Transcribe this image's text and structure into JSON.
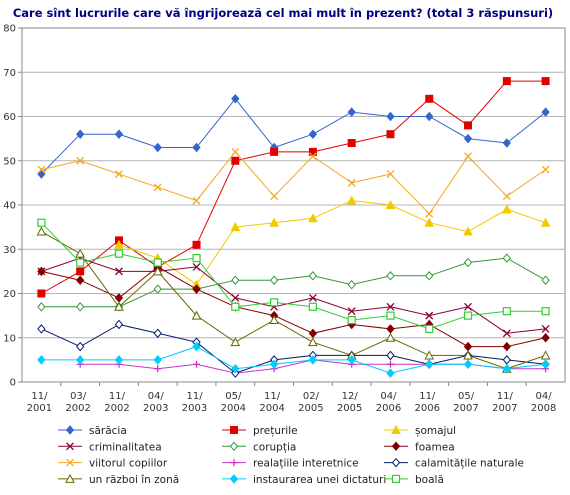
{
  "chart_data": {
    "type": "line",
    "title": "Care sînt lucrurile care vă îngrijorează cel mai mult în prezent? (total 3 răspunsuri)",
    "xlabel": "",
    "ylabel": "",
    "ylim": [
      0,
      80
    ],
    "yticks": [
      "0",
      "10",
      "20",
      "30",
      "40",
      "50",
      "60",
      "70",
      "80"
    ],
    "categories": [
      [
        "11/",
        "2001"
      ],
      [
        "03/",
        "2002"
      ],
      [
        "11/",
        "2002"
      ],
      [
        "04/",
        "2003"
      ],
      [
        "11/",
        "2003"
      ],
      [
        "05/",
        "2004"
      ],
      [
        "11/",
        "2004"
      ],
      [
        "02/",
        "2005"
      ],
      [
        "12/",
        "2005"
      ],
      [
        "04/",
        "2006"
      ],
      [
        "11/",
        "2006"
      ],
      [
        "05/",
        "2007"
      ],
      [
        "11/",
        "2007"
      ],
      [
        "04/",
        "2008"
      ]
    ],
    "grid": true,
    "legend_position": "bottom",
    "series": [
      {
        "name": "sărăcia",
        "color": "#3366cc",
        "marker": "diamond",
        "values": [
          47,
          56,
          56,
          53,
          53,
          64,
          53,
          56,
          61,
          60,
          60,
          55,
          54,
          61
        ]
      },
      {
        "name": "prețurile",
        "color": "#e00000",
        "marker": "square",
        "values": [
          20,
          25,
          32,
          26,
          31,
          50,
          52,
          52,
          54,
          56,
          64,
          58,
          68,
          68
        ]
      },
      {
        "name": "șomajul",
        "color": "#f2c800",
        "marker": "triangle",
        "values": [
          null,
          null,
          31,
          28,
          22,
          35,
          36,
          37,
          41,
          40,
          36,
          34,
          39,
          36
        ]
      },
      {
        "name": "criminalitatea",
        "color": "#880033",
        "marker": "x",
        "values": [
          25,
          28,
          25,
          25,
          26,
          19,
          17,
          19,
          16,
          17,
          15,
          17,
          11,
          12
        ]
      },
      {
        "name": "corupția",
        "color": "#339933",
        "marker": "diamond-open",
        "values": [
          17,
          17,
          17,
          21,
          21,
          23,
          23,
          24,
          22,
          24,
          24,
          27,
          28,
          23
        ]
      },
      {
        "name": "foamea",
        "color": "#800000",
        "marker": "diamond",
        "values": [
          25,
          23,
          19,
          26,
          21,
          17,
          15,
          11,
          13,
          12,
          13,
          8,
          8,
          10
        ]
      },
      {
        "name": "viitorul copiilor",
        "color": "#f5a623",
        "marker": "x",
        "values": [
          48,
          50,
          47,
          44,
          41,
          52,
          42,
          51,
          45,
          47,
          38,
          51,
          42,
          48
        ]
      },
      {
        "name": "realațiile interetnice",
        "color": "#cc33cc",
        "marker": "plus",
        "values": [
          null,
          4,
          4,
          3,
          4,
          2,
          3,
          5,
          4,
          4,
          4,
          4,
          3,
          3
        ]
      },
      {
        "name": "calamitățile naturale",
        "color": "#001a66",
        "marker": "diamond-open",
        "values": [
          12,
          8,
          13,
          11,
          9,
          2,
          5,
          6,
          6,
          6,
          4,
          6,
          5,
          4
        ]
      },
      {
        "name": "un război în zonă",
        "color": "#666600",
        "marker": "triangle-open",
        "values": [
          34,
          29,
          17,
          25,
          15,
          9,
          14,
          9,
          6,
          10,
          6,
          6,
          3,
          6
        ]
      },
      {
        "name": "instaurarea unei dictaturi",
        "color": "#00ccff",
        "marker": "diamond",
        "values": [
          5,
          5,
          5,
          5,
          8,
          3,
          4,
          5,
          5,
          2,
          4,
          4,
          3,
          4
        ]
      },
      {
        "name": "boală",
        "color": "#33cc33",
        "marker": "square-open",
        "values": [
          36,
          27,
          29,
          27,
          28,
          17,
          18,
          17,
          14,
          15,
          12,
          15,
          16,
          16
        ]
      }
    ]
  }
}
